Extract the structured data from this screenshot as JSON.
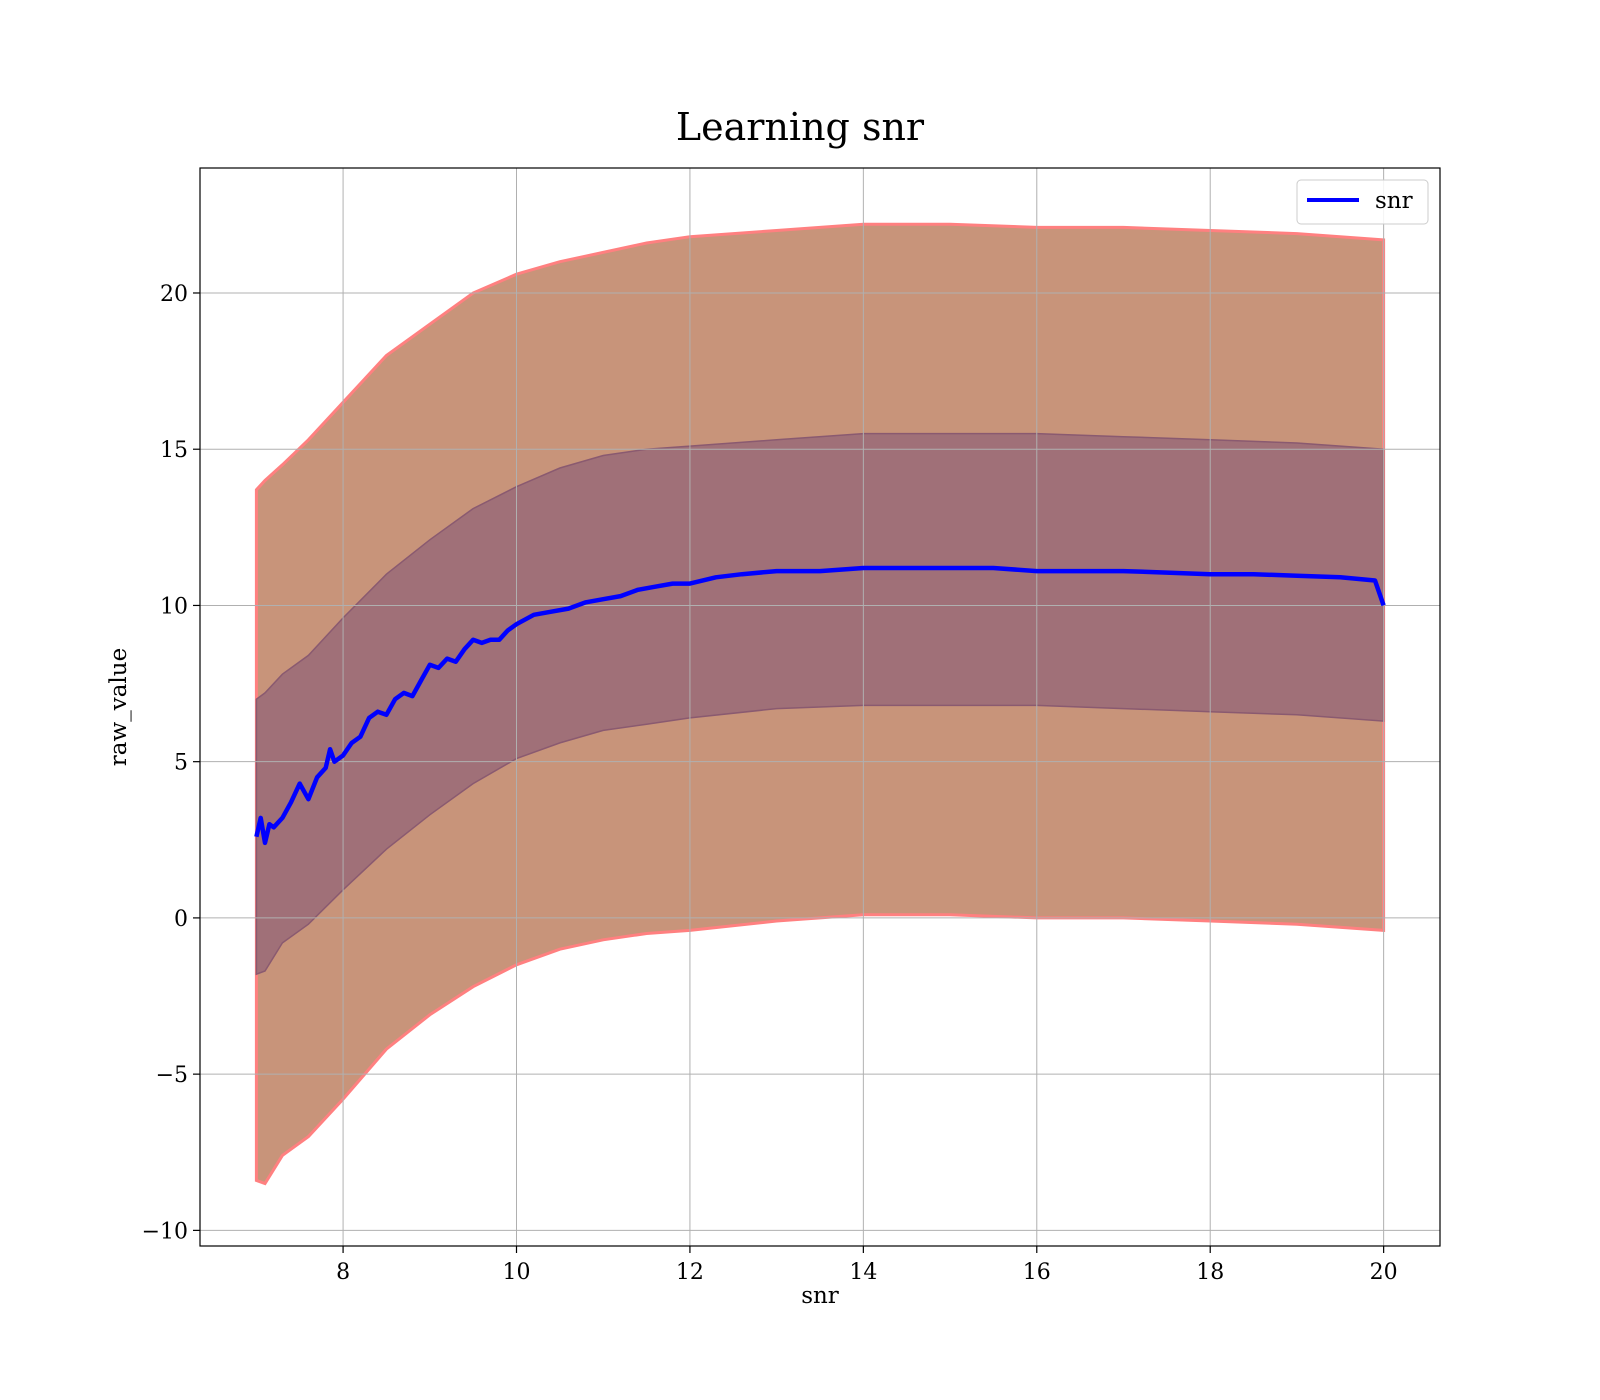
{
  "chart_data": {
    "type": "line",
    "title": "Learning snr",
    "xlabel": "snr",
    "ylabel": "raw_value",
    "xlim": [
      6.35,
      20.65
    ],
    "ylim": [
      -10.5,
      24.0
    ],
    "xticks": [
      8,
      10,
      12,
      14,
      16,
      18,
      20
    ],
    "xtick_labels": [
      "8",
      "10",
      "12",
      "14",
      "16",
      "18",
      "20"
    ],
    "yticks": [
      -10,
      -5,
      0,
      5,
      10,
      15,
      20
    ],
    "ytick_labels": [
      "−10",
      "−5",
      "0",
      "5",
      "10",
      "15",
      "20"
    ],
    "grid": true,
    "legend_position": "top-right",
    "colors": {
      "line": "#0000ff",
      "band_outer": "#c8947a",
      "band_outer_edge": "#ff8080",
      "band_inner": "#a07078",
      "grid": "#b0b0b0"
    },
    "series": [
      {
        "name": "snr",
        "role": "mean",
        "x": [
          7.0,
          7.05,
          7.1,
          7.15,
          7.2,
          7.3,
          7.4,
          7.5,
          7.6,
          7.7,
          7.8,
          7.85,
          7.9,
          8.0,
          8.1,
          8.2,
          8.3,
          8.4,
          8.5,
          8.6,
          8.7,
          8.8,
          8.9,
          9.0,
          9.1,
          9.2,
          9.3,
          9.4,
          9.5,
          9.6,
          9.7,
          9.8,
          9.9,
          10.0,
          10.2,
          10.4,
          10.6,
          10.8,
          11.0,
          11.2,
          11.4,
          11.6,
          11.8,
          12.0,
          12.3,
          12.6,
          13.0,
          13.5,
          14.0,
          14.5,
          15.0,
          15.5,
          16.0,
          16.5,
          17.0,
          17.5,
          18.0,
          18.5,
          19.0,
          19.5,
          19.9,
          20.0
        ],
        "y": [
          2.6,
          3.2,
          2.4,
          3.0,
          2.9,
          3.2,
          3.7,
          4.3,
          3.8,
          4.5,
          4.8,
          5.4,
          5.0,
          5.2,
          5.6,
          5.8,
          6.4,
          6.6,
          6.5,
          7.0,
          7.2,
          7.1,
          7.6,
          8.1,
          8.0,
          8.3,
          8.2,
          8.6,
          8.9,
          8.8,
          8.9,
          8.9,
          9.2,
          9.4,
          9.7,
          9.8,
          9.9,
          10.1,
          10.2,
          10.3,
          10.5,
          10.6,
          10.7,
          10.7,
          10.9,
          11.0,
          11.1,
          11.1,
          11.2,
          11.2,
          11.2,
          11.2,
          11.1,
          11.1,
          11.1,
          11.05,
          11.0,
          11.0,
          10.95,
          10.9,
          10.8,
          10.0
        ]
      },
      {
        "role": "inner_band",
        "x": [
          7.0,
          7.1,
          7.3,
          7.6,
          8.0,
          8.5,
          9.0,
          9.5,
          10.0,
          10.5,
          11.0,
          11.5,
          12.0,
          13.0,
          14.0,
          15.0,
          16.0,
          17.0,
          18.0,
          19.0,
          20.0
        ],
        "lower": [
          -1.8,
          -1.7,
          -0.8,
          -0.2,
          0.9,
          2.2,
          3.3,
          4.3,
          5.1,
          5.6,
          6.0,
          6.2,
          6.4,
          6.7,
          6.8,
          6.8,
          6.8,
          6.7,
          6.6,
          6.5,
          6.3
        ],
        "upper": [
          7.0,
          7.2,
          7.8,
          8.4,
          9.6,
          11.0,
          12.1,
          13.1,
          13.8,
          14.4,
          14.8,
          15.0,
          15.1,
          15.3,
          15.5,
          15.5,
          15.5,
          15.4,
          15.3,
          15.2,
          15.0
        ]
      },
      {
        "role": "outer_band",
        "x": [
          7.0,
          7.1,
          7.3,
          7.6,
          8.0,
          8.5,
          9.0,
          9.5,
          10.0,
          10.5,
          11.0,
          11.5,
          12.0,
          13.0,
          14.0,
          15.0,
          16.0,
          17.0,
          18.0,
          19.0,
          20.0
        ],
        "lower": [
          -8.4,
          -8.5,
          -7.6,
          -7.0,
          -5.8,
          -4.2,
          -3.1,
          -2.2,
          -1.5,
          -1.0,
          -0.7,
          -0.5,
          -0.4,
          -0.1,
          0.1,
          0.1,
          0.0,
          0.0,
          -0.1,
          -0.2,
          -0.4
        ],
        "upper": [
          13.7,
          14.0,
          14.5,
          15.3,
          16.5,
          18.0,
          19.0,
          20.0,
          20.6,
          21.0,
          21.3,
          21.6,
          21.8,
          22.0,
          22.2,
          22.2,
          22.1,
          22.1,
          22.0,
          21.9,
          21.7
        ]
      }
    ]
  }
}
